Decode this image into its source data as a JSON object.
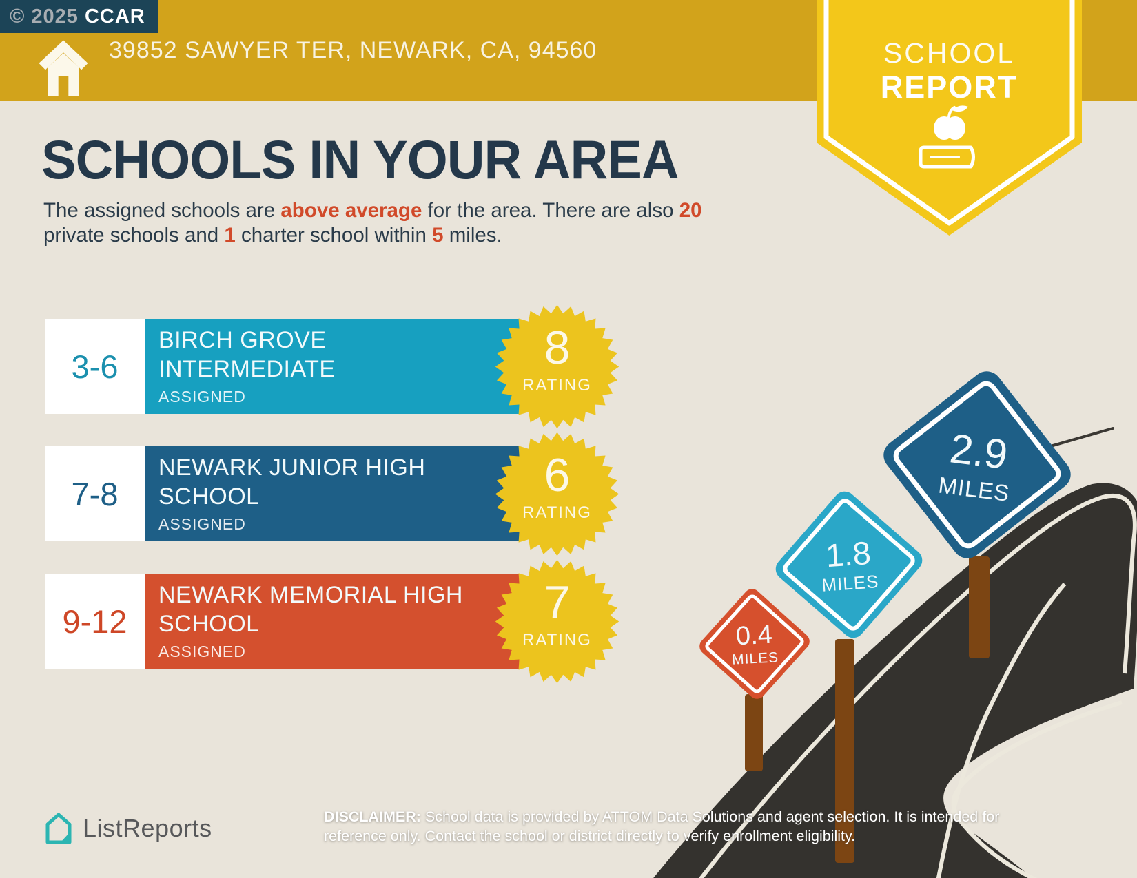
{
  "badge": {
    "copyright": "© 2025",
    "org": "CCAR"
  },
  "header": {
    "address": "39852 SAWYER TER, NEWARK, CA, 94560"
  },
  "ribbon": {
    "line1": "SCHOOL",
    "line2": "REPORT"
  },
  "main": {
    "title": "SCHOOLS IN YOUR AREA",
    "intro": {
      "t1": "The assigned schools are ",
      "h1": "above average",
      "t2": " for the area. There are also ",
      "h2": "20",
      "t3": " private schools and ",
      "h3": "1",
      "t4": " charter school within ",
      "h4": "5",
      "t5": " miles."
    }
  },
  "schools": [
    {
      "grades": "3-6",
      "name": "BIRCH GROVE INTERMEDIATE",
      "status": "ASSIGNED",
      "rating": "8",
      "rating_label": "RATING",
      "bar_color": "#17A0C0"
    },
    {
      "grades": "7-8",
      "name": "NEWARK JUNIOR HIGH SCHOOL",
      "status": "ASSIGNED",
      "rating": "6",
      "rating_label": "RATING",
      "bar_color": "#1E5F87"
    },
    {
      "grades": "9-12",
      "name": "NEWARK MEMORIAL HIGH SCHOOL",
      "status": "ASSIGNED",
      "rating": "7",
      "rating_label": "RATING",
      "bar_color": "#D4502E"
    }
  ],
  "signs": [
    {
      "distance": "0.4",
      "unit": "MILES",
      "color": "#D6502D"
    },
    {
      "distance": "1.8",
      "unit": "MILES",
      "color": "#2AA7C8"
    },
    {
      "distance": "2.9",
      "unit": "MILES",
      "color": "#1E5F87"
    }
  ],
  "footer": {
    "brand": "ListReports",
    "disclaimer_label": "DISCLAIMER:",
    "disclaimer_text": " School data is provided by ATTOM Data Solutions and agent selection. It is intended for reference only. Contact the school or district directly to verify enrollment eligibility."
  },
  "colors": {
    "background": "#E9E4DA",
    "topbar_gold": "#D2A31B",
    "ribbon_yellow": "#F3C71A",
    "badge_yellow": "#ECC41E",
    "headline_navy": "#24384A",
    "highlight_red": "#D14A2A",
    "road_dark": "#34322E",
    "post_brown": "#7C4513",
    "logo_teal": "#2CB5B2"
  }
}
